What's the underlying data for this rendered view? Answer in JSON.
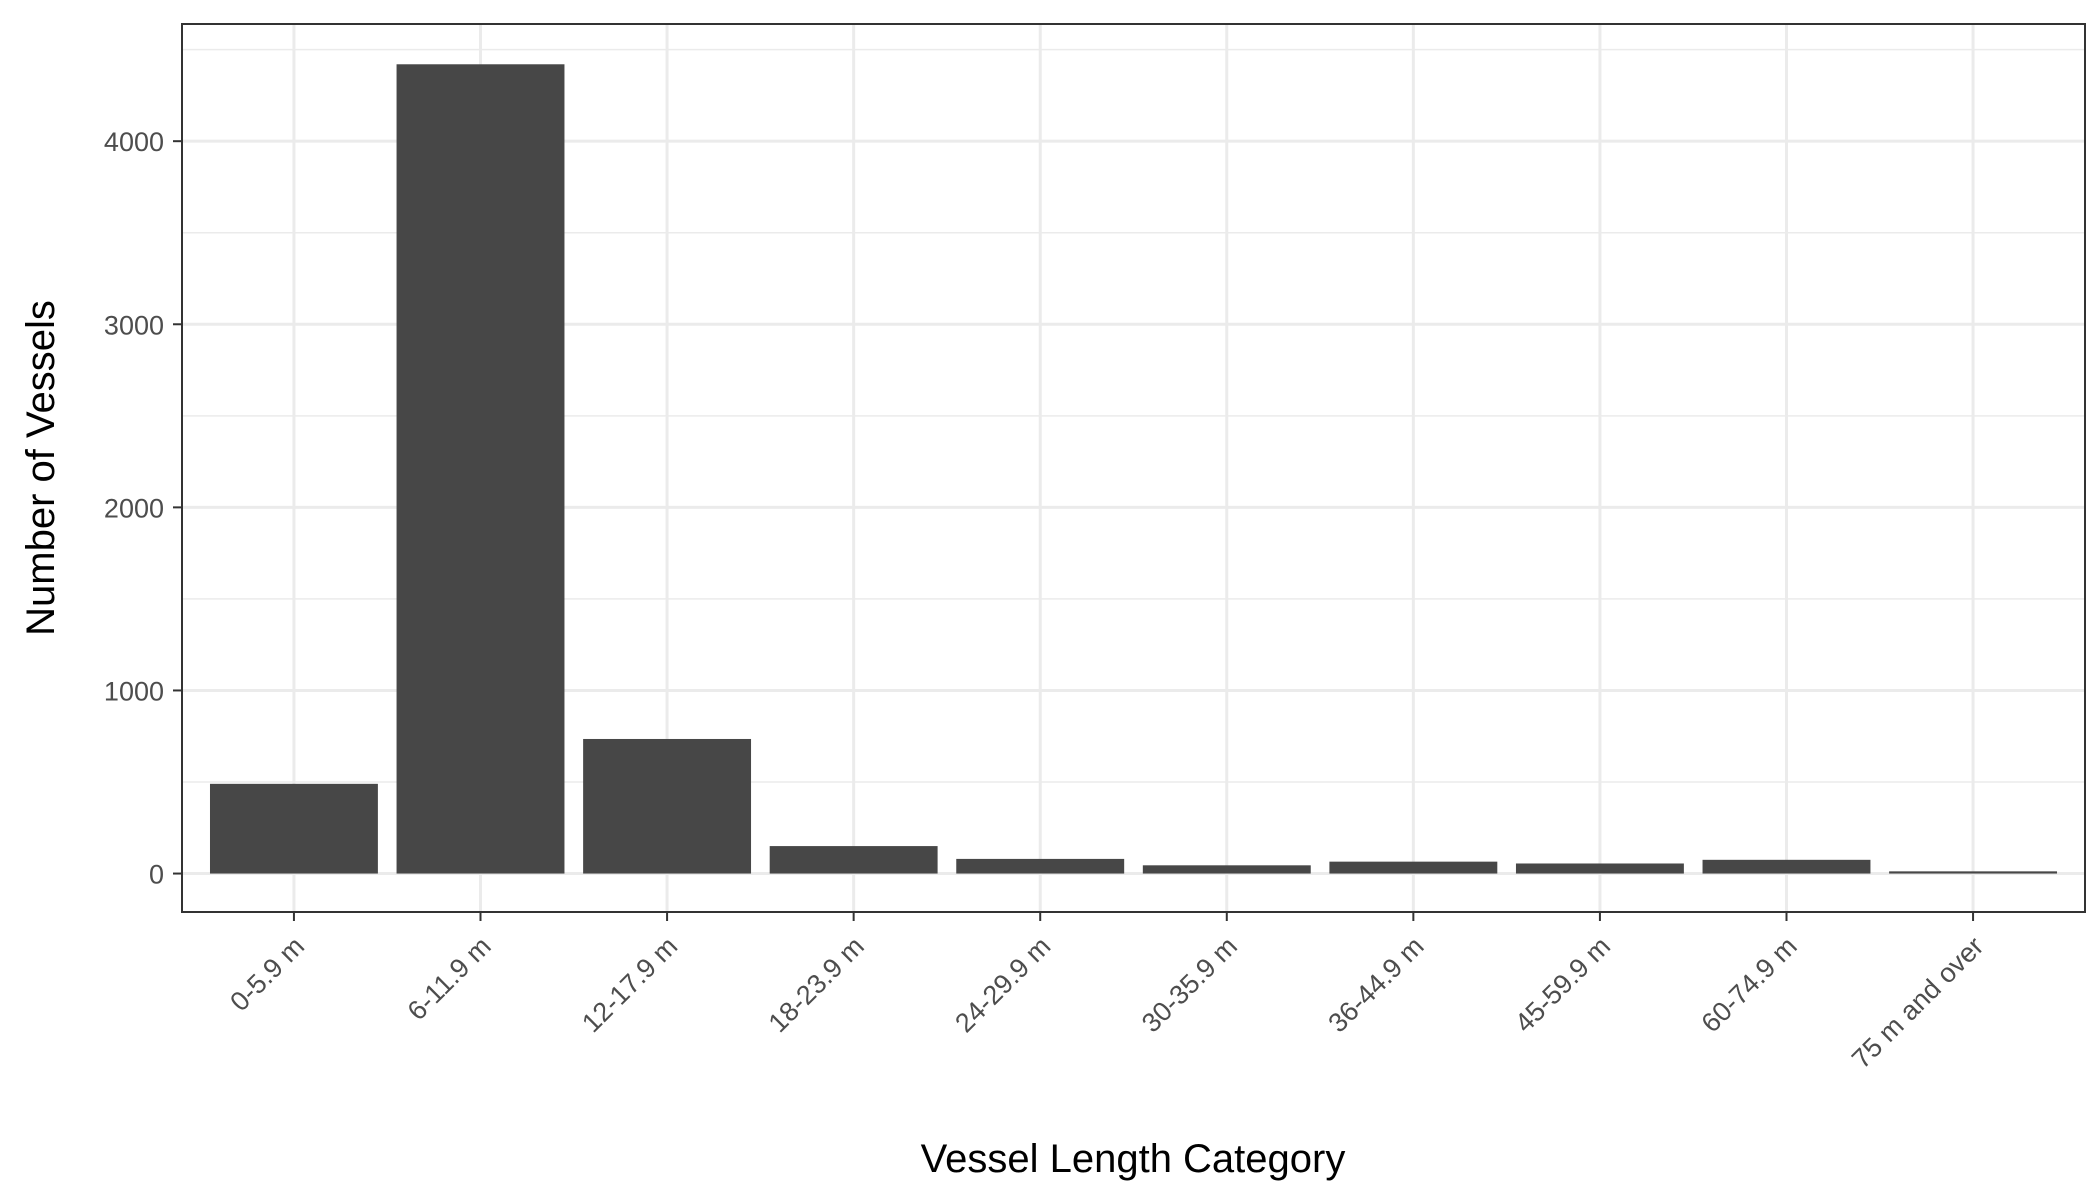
{
  "chart_data": {
    "type": "bar",
    "title": "",
    "xlabel": "Vessel Length Category",
    "ylabel": "Number of Vessels",
    "categories": [
      "0-5.9 m",
      "6-11.9 m",
      "12-17.9 m",
      "18-23.9 m",
      "24-29.9 m",
      "30-35.9 m",
      "36-44.9 m",
      "45-59.9 m",
      "60-74.9 m",
      "75 m and over"
    ],
    "values": [
      490,
      4420,
      735,
      150,
      80,
      45,
      65,
      55,
      75,
      12
    ],
    "yticks": [
      0,
      1000,
      2000,
      3000,
      4000
    ],
    "ylim": [
      -210,
      4640
    ],
    "grid": true,
    "bar_color": "#474747",
    "grid_color": "#ebebeb",
    "panel_border_color": "#333333"
  }
}
